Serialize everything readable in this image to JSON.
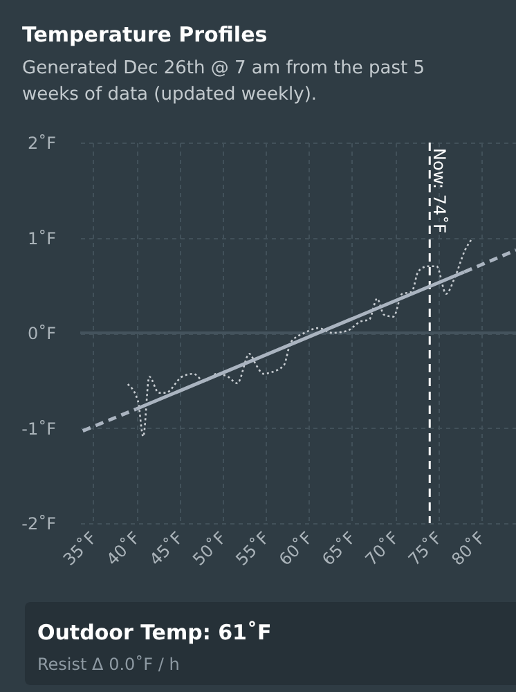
{
  "chart_data": {
    "type": "line",
    "title": "Temperature Profiles",
    "subtitle": "Generated Dec 26th @ 7 am from the past 5 weeks of data (updated weekly).",
    "xlim": [
      33.5,
      84
    ],
    "ylim": [
      -2,
      2
    ],
    "xticks": [
      {
        "value": 35,
        "label": "35˚F"
      },
      {
        "value": 40,
        "label": "40˚F"
      },
      {
        "value": 45,
        "label": "45˚F"
      },
      {
        "value": 50,
        "label": "50˚F"
      },
      {
        "value": 55,
        "label": "55˚F"
      },
      {
        "value": 60,
        "label": "60˚F"
      },
      {
        "value": 65,
        "label": "65˚F"
      },
      {
        "value": 70,
        "label": "70˚F"
      },
      {
        "value": 75,
        "label": "75˚F"
      },
      {
        "value": 80,
        "label": "80˚F"
      }
    ],
    "yticks": [
      {
        "value": -2,
        "label": "-2˚F"
      },
      {
        "value": -1,
        "label": "-1˚F"
      },
      {
        "value": 0,
        "label": "0˚F"
      },
      {
        "value": 1,
        "label": "1˚F"
      },
      {
        "value": 2,
        "label": "2˚F"
      }
    ],
    "grid": true,
    "series": [
      {
        "color": "#c8cdd2",
        "line_style": "dotted",
        "x": [
          39.0,
          40.2,
          40.8,
          41.5,
          42.6,
          43.4,
          45.3,
          46.6,
          47.9,
          49.3,
          50.6,
          51.7,
          53.1,
          53.9,
          54.7,
          55.8,
          57.1,
          57.9,
          59.5,
          61.1,
          62.7,
          64.4,
          66.0,
          67.0,
          67.9,
          68.7,
          69.8,
          70.8,
          71.9,
          72.7,
          73.8,
          74.8,
          75.9,
          76.9,
          78.1,
          78.9
        ],
        "values": [
          -0.54,
          -0.72,
          -1.09,
          -0.46,
          -0.63,
          -0.63,
          -0.46,
          -0.43,
          -0.51,
          -0.43,
          -0.46,
          -0.53,
          -0.22,
          -0.34,
          -0.43,
          -0.41,
          -0.34,
          -0.1,
          0.0,
          0.05,
          0.0,
          0.02,
          0.12,
          0.14,
          0.36,
          0.19,
          0.17,
          0.41,
          0.43,
          0.65,
          0.7,
          0.7,
          0.41,
          0.58,
          0.87,
          0.99
        ]
      },
      {
        "color": "#aab4c0",
        "line_style": "dashed",
        "x": [
          33.8,
          40
        ],
        "values": [
          -1.03,
          -0.8
        ]
      },
      {
        "color": "#aab4c0",
        "line_style": "solid",
        "x": [
          40,
          78
        ],
        "values": [
          -0.8,
          0.64
        ]
      },
      {
        "color": "#aab4c0",
        "line_style": "dashed",
        "x": [
          78,
          84
        ],
        "values": [
          0.64,
          0.87
        ]
      }
    ],
    "ref_lines": [
      {
        "axis": "x",
        "value": 74,
        "label": "Now: 74˚F",
        "color": "#ffffff",
        "line_style": "dashed"
      },
      {
        "axis": "y",
        "value": 0,
        "color": "#44535d",
        "line_style": "solid"
      }
    ],
    "annotations": [
      "Outdoor Temp: 61˚F",
      "Resist Δ 0.0˚F / h"
    ]
  }
}
